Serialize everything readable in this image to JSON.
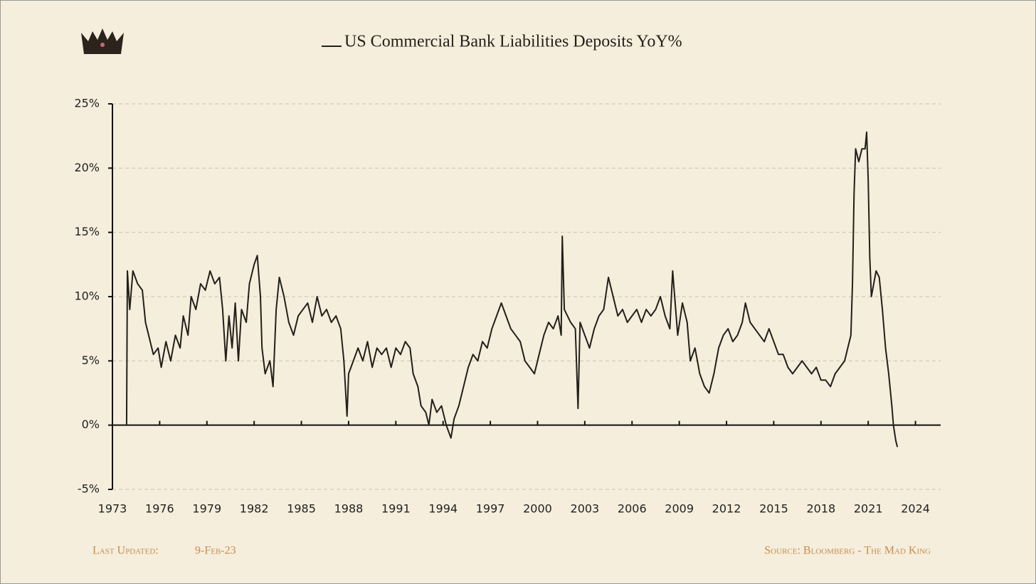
{
  "chart_data": {
    "type": "line",
    "x": [
      1973.9,
      1973.95,
      1974.1,
      1974.3,
      1974.6,
      1974.9,
      1975.1,
      1975.3,
      1975.6,
      1975.9,
      1976.1,
      1976.4,
      1976.7,
      1977.0,
      1977.3,
      1977.5,
      1977.8,
      1978.0,
      1978.3,
      1978.6,
      1978.9,
      1979.2,
      1979.5,
      1979.8,
      1980.0,
      1980.2,
      1980.4,
      1980.6,
      1980.8,
      1981.0,
      1981.2,
      1981.5,
      1981.7,
      1982.0,
      1982.2,
      1982.4,
      1982.5,
      1982.7,
      1983.0,
      1983.2,
      1983.4,
      1983.6,
      1983.9,
      1984.2,
      1984.5,
      1984.8,
      1985.1,
      1985.4,
      1985.7,
      1986.0,
      1986.3,
      1986.6,
      1986.9,
      1987.2,
      1987.5,
      1987.7,
      1987.9,
      1988.0,
      1988.3,
      1988.6,
      1988.9,
      1989.2,
      1989.5,
      1989.8,
      1990.1,
      1990.4,
      1990.7,
      1991.0,
      1991.3,
      1991.6,
      1991.9,
      1992.1,
      1992.4,
      1992.6,
      1992.9,
      1993.1,
      1993.3,
      1993.6,
      1993.9,
      1994.2,
      1994.5,
      1994.7,
      1995.0,
      1995.3,
      1995.6,
      1995.9,
      1996.2,
      1996.5,
      1996.8,
      1997.1,
      1997.4,
      1997.7,
      1998.0,
      1998.3,
      1998.6,
      1998.9,
      1999.2,
      1999.5,
      1999.8,
      2000.1,
      2000.4,
      2000.7,
      2001.0,
      2001.3,
      2001.5,
      2001.57,
      2001.7,
      2002.1,
      2002.4,
      2002.57,
      2002.7,
      2003.0,
      2003.3,
      2003.6,
      2003.9,
      2004.2,
      2004.5,
      2004.8,
      2005.1,
      2005.4,
      2005.7,
      2006.0,
      2006.3,
      2006.6,
      2006.9,
      2007.2,
      2007.5,
      2007.8,
      2008.1,
      2008.4,
      2008.58,
      2008.9,
      2009.2,
      2009.5,
      2009.7,
      2010.0,
      2010.3,
      2010.6,
      2010.9,
      2011.2,
      2011.5,
      2011.8,
      2012.1,
      2012.4,
      2012.7,
      2013.0,
      2013.2,
      2013.5,
      2013.8,
      2014.1,
      2014.4,
      2014.7,
      2015.0,
      2015.3,
      2015.6,
      2015.9,
      2016.2,
      2016.5,
      2016.8,
      2017.1,
      2017.4,
      2017.7,
      2018.0,
      2018.3,
      2018.6,
      2018.9,
      2019.2,
      2019.5,
      2019.7,
      2019.9,
      2020.0,
      2020.1,
      2020.2,
      2020.4,
      2020.6,
      2020.8,
      2020.9,
      2021.0,
      2021.1,
      2021.2,
      2021.35,
      2021.5,
      2021.7,
      2021.9,
      2022.1,
      2022.3,
      2022.5,
      2022.6,
      2022.75,
      2022.85
    ],
    "series": [
      {
        "name": "US Commercial Bank Liabilities Deposits YoY%",
        "color": "#231f1a",
        "values": [
          0,
          12,
          9,
          12,
          11,
          10.5,
          8,
          7,
          5.5,
          6,
          4.5,
          6.5,
          5,
          7,
          6,
          8.5,
          7,
          10,
          9,
          11,
          10.5,
          12,
          11,
          11.5,
          9,
          5,
          8.5,
          6,
          9.5,
          5,
          9,
          8,
          11,
          12.5,
          13.2,
          10,
          6,
          4,
          5,
          3,
          9,
          11.5,
          10,
          8,
          7,
          8.5,
          9,
          9.5,
          8,
          10,
          8.5,
          9,
          8,
          8.5,
          7.5,
          5,
          0.7,
          4,
          5,
          6,
          5,
          6.5,
          4.5,
          6,
          5.5,
          6,
          4.5,
          6,
          5.5,
          6.5,
          6,
          4,
          3,
          1.5,
          1,
          0,
          2,
          1,
          1.5,
          0,
          -1,
          0.5,
          1.5,
          3,
          4.5,
          5.5,
          5,
          6.5,
          6,
          7.5,
          8.5,
          9.5,
          8.5,
          7.5,
          7,
          6.5,
          5,
          4.5,
          4,
          5.5,
          7,
          8,
          7.5,
          8.5,
          7,
          14.7,
          9,
          8,
          7.5,
          1.3,
          8,
          7,
          6,
          7.5,
          8.5,
          9,
          11.5,
          10,
          8.5,
          9,
          8,
          8.5,
          9,
          8,
          9,
          8.5,
          9,
          10,
          8.5,
          7.5,
          12,
          7,
          9.5,
          8,
          5,
          6,
          4,
          3,
          2.5,
          4,
          6,
          7,
          7.5,
          6.5,
          7,
          8,
          9.5,
          8,
          7.5,
          7,
          6.5,
          7.5,
          6.5,
          5.5,
          5.5,
          4.5,
          4,
          4.5,
          5,
          4.5,
          4,
          4.5,
          3.5,
          3.5,
          3,
          4,
          4.5,
          5,
          6,
          7,
          11,
          18,
          21.5,
          20.5,
          21.5,
          21.5,
          22.8,
          19,
          13,
          10,
          11,
          12,
          11.5,
          9,
          6,
          4,
          1.5,
          0,
          -1.2,
          -1.7
        ]
      }
    ],
    "xlim": [
      1973,
      2025.6
    ],
    "xticks": [
      1973,
      1976,
      1979,
      1982,
      1985,
      1988,
      1991,
      1994,
      1997,
      2000,
      2003,
      2006,
      2009,
      2012,
      2015,
      2018,
      2021,
      2024
    ],
    "ylim": [
      -5,
      25
    ],
    "yticks": [
      {
        "value": -5,
        "label": "-5%"
      },
      {
        "value": 0,
        "label": "0%"
      },
      {
        "value": 5,
        "label": "5%"
      },
      {
        "value": 10,
        "label": "10%"
      },
      {
        "value": 15,
        "label": "15%"
      },
      {
        "value": 20,
        "label": "20%"
      },
      {
        "value": 25,
        "label": "25%"
      }
    ],
    "grid": true,
    "footer": {
      "updated_label": "Last Updated:",
      "updated_date": "9-Feb-23",
      "source": "Source: Bloomberg - The Mad King"
    }
  }
}
